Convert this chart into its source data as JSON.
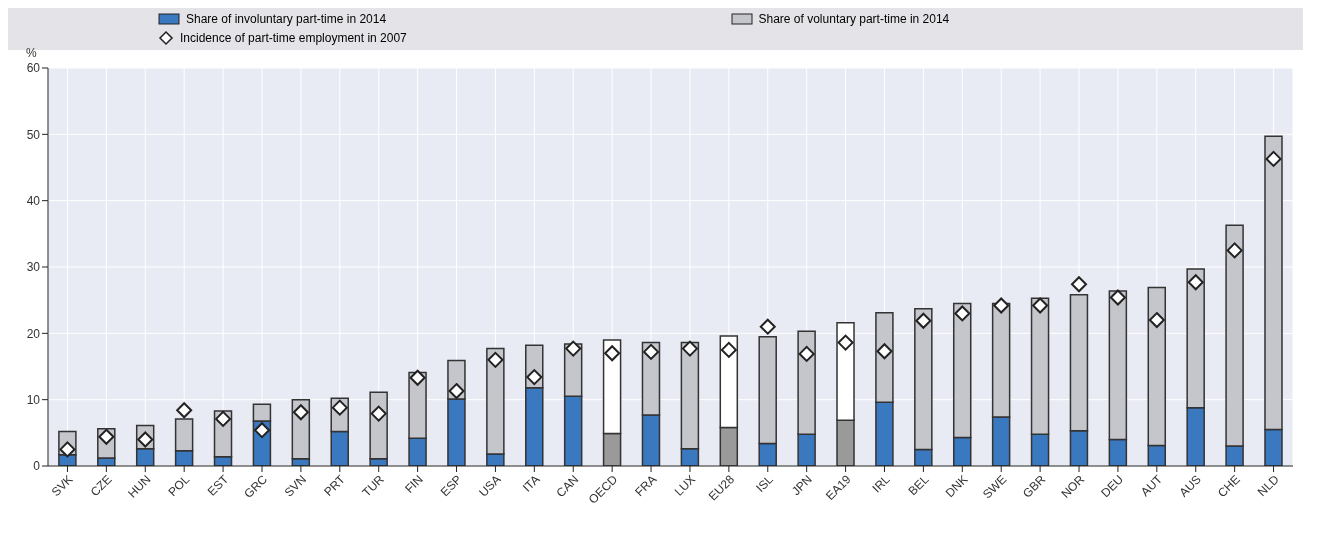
{
  "chart_data": {
    "type": "bar",
    "stacked": true,
    "ylabel": "%",
    "categories": [
      "SVK",
      "CZE",
      "HUN",
      "POL",
      "EST",
      "GRC",
      "SVN",
      "PRT",
      "TUR",
      "FIN",
      "ESP",
      "USA",
      "ITA",
      "CAN",
      "OECD",
      "FRA",
      "LUX",
      "EU28",
      "ISL",
      "JPN",
      "EA19",
      "IRL",
      "BEL",
      "DNK",
      "SWE",
      "GBR",
      "NOR",
      "DEU",
      "AUT",
      "AUS",
      "CHE",
      "NLD"
    ],
    "series": [
      {
        "name": "Share of involuntary part-time in 2014",
        "color": "#3a78c0",
        "colors": [
          "#3a78c0",
          "#3a78c0",
          "#3a78c0",
          "#3a78c0",
          "#3a78c0",
          "#3a78c0",
          "#3a78c0",
          "#3a78c0",
          "#3a78c0",
          "#3a78c0",
          "#3a78c0",
          "#3a78c0",
          "#3a78c0",
          "#3a78c0",
          "#9a9a9a",
          "#3a78c0",
          "#3a78c0",
          "#9a9a9a",
          "#3a78c0",
          "#3a78c0",
          "#9a9a9a",
          "#3a78c0",
          "#3a78c0",
          "#3a78c0",
          "#3a78c0",
          "#3a78c0",
          "#3a78c0",
          "#3a78c0",
          "#3a78c0",
          "#3a78c0",
          "#3a78c0",
          "#3a78c0"
        ],
        "values": [
          1.7,
          1.2,
          2.6,
          2.3,
          1.4,
          6.8,
          1.1,
          5.2,
          1.1,
          4.2,
          10.1,
          1.8,
          11.8,
          10.5,
          4.9,
          7.7,
          2.6,
          5.8,
          3.4,
          4.8,
          6.9,
          9.6,
          2.5,
          4.3,
          7.4,
          4.8,
          5.3,
          4.0,
          3.1,
          8.8,
          3.0,
          5.5
        ]
      },
      {
        "name": "Share of voluntary part-time in 2014",
        "color": "#c4c6cc",
        "colors": [
          "#c4c6cc",
          "#c4c6cc",
          "#c4c6cc",
          "#c4c6cc",
          "#c4c6cc",
          "#c4c6cc",
          "#c4c6cc",
          "#c4c6cc",
          "#c4c6cc",
          "#c4c6cc",
          "#c4c6cc",
          "#c4c6cc",
          "#c4c6cc",
          "#c4c6cc",
          "#ffffff",
          "#c4c6cc",
          "#c4c6cc",
          "#ffffff",
          "#c4c6cc",
          "#c4c6cc",
          "#ffffff",
          "#c4c6cc",
          "#c4c6cc",
          "#c4c6cc",
          "#c4c6cc",
          "#c4c6cc",
          "#c4c6cc",
          "#c4c6cc",
          "#c4c6cc",
          "#c4c6cc",
          "#c4c6cc",
          "#c4c6cc"
        ],
        "values": [
          3.5,
          4.4,
          3.5,
          4.8,
          6.9,
          2.5,
          8.9,
          5.0,
          10.0,
          9.9,
          5.8,
          15.9,
          6.4,
          7.9,
          14.1,
          10.9,
          16.0,
          13.8,
          16.1,
          15.5,
          14.7,
          13.5,
          21.2,
          20.2,
          17.1,
          20.5,
          20.5,
          22.4,
          23.8,
          20.9,
          33.3,
          44.2
        ]
      },
      {
        "name": "Incidence of part-time employment in 2007",
        "type": "scatter",
        "marker": "diamond",
        "color": "#ffffff",
        "values": [
          2.5,
          4.4,
          4.0,
          8.4,
          7.1,
          5.4,
          8.1,
          8.8,
          7.9,
          13.3,
          11.3,
          16.0,
          13.4,
          17.7,
          17.0,
          17.2,
          17.7,
          17.5,
          21.0,
          16.9,
          18.6,
          17.3,
          21.9,
          23.0,
          24.2,
          24.2,
          27.4,
          25.4,
          22.0,
          27.7,
          32.5,
          46.3
        ]
      }
    ],
    "ylim": [
      0,
      60
    ],
    "yticks": [
      0,
      10,
      20,
      30,
      40,
      50,
      60
    ],
    "grid": true,
    "legend": "top"
  }
}
